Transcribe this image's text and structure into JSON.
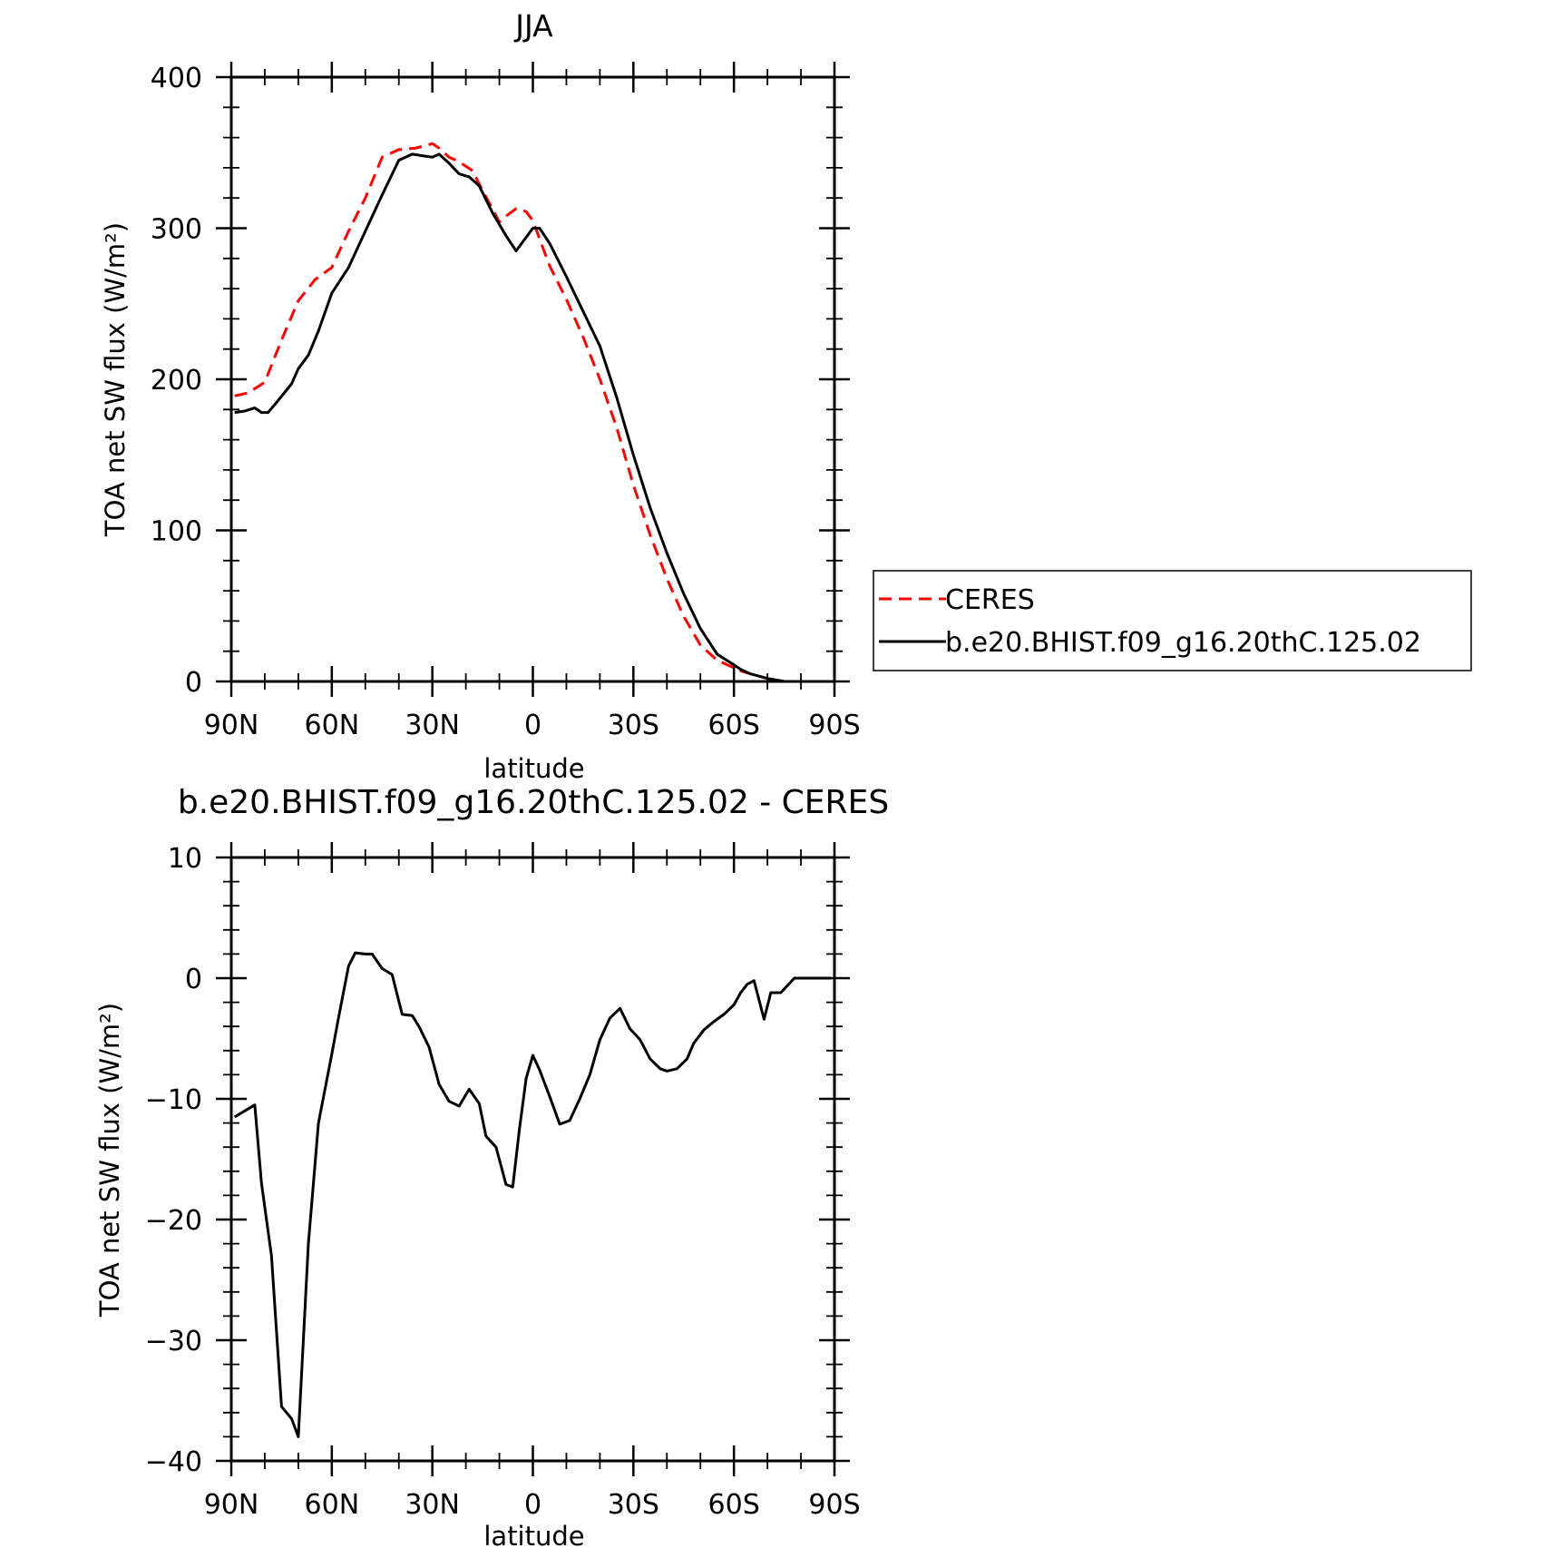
{
  "figure": {
    "background": "#ffffff"
  },
  "chart_data": [
    {
      "type": "line",
      "title": "JJA",
      "xlabel": "latitude",
      "ylabel": "TOA net SW flux (W/m²)",
      "xlim": [
        90,
        -90
      ],
      "ylim": [
        0,
        400
      ],
      "y_ticks": [
        0,
        100,
        200,
        300,
        400
      ],
      "x_ticks": [
        90,
        60,
        30,
        0,
        -30,
        -60,
        -90
      ],
      "x_tick_labels": [
        "90N",
        "60N",
        "30N",
        "0",
        "30S",
        "60S",
        "90S"
      ],
      "legend": "right",
      "series": [
        {
          "name": "CERES",
          "color": "#ff0000",
          "dash": "dashed",
          "x": [
            89,
            85,
            80,
            75,
            70,
            65,
            60,
            55,
            50,
            45,
            40,
            35,
            30,
            28,
            25,
            22,
            18,
            15,
            10,
            8,
            5,
            2,
            0,
            -2,
            -5,
            -10,
            -15,
            -20,
            -25,
            -30,
            -35,
            -40,
            -45,
            -50,
            -55,
            -60,
            -62,
            -65,
            -70,
            -75,
            -80
          ],
          "y": [
            189,
            191,
            198,
            226,
            252,
            266,
            274,
            298,
            320,
            347,
            352,
            353,
            356,
            353,
            347,
            344,
            338,
            325,
            304,
            308,
            313,
            311,
            305,
            293,
            275,
            253,
            228,
            200,
            168,
            130,
            97,
            68,
            43,
            24,
            14,
            9,
            7,
            5,
            2,
            0,
            0
          ]
        },
        {
          "name": "b.e20.BHIST.f09_g16.20thC.125.02",
          "color": "#000000",
          "dash": "solid",
          "x": [
            89,
            86,
            83,
            81,
            79,
            76,
            72,
            70,
            67,
            64,
            60,
            55,
            50,
            45,
            40,
            36,
            33,
            30,
            28,
            25,
            22,
            19,
            16,
            12,
            8,
            5,
            2,
            0,
            -2,
            -5,
            -10,
            -15,
            -20,
            -25,
            -30,
            -35,
            -40,
            -45,
            -50,
            -55,
            -60,
            -62,
            -65,
            -70,
            -75,
            -80
          ],
          "y": [
            178,
            179,
            181,
            178,
            178,
            186,
            197,
            207,
            216,
            232,
            257,
            274,
            298,
            322,
            345,
            349,
            348,
            347,
            349,
            343,
            336,
            334,
            328,
            310,
            295,
            285,
            294,
            300,
            300,
            290,
            268,
            245,
            222,
            188,
            150,
            115,
            85,
            58,
            35,
            18,
            11,
            8,
            5,
            2,
            0,
            0
          ]
        }
      ]
    },
    {
      "type": "line",
      "title": "b.e20.BHIST.f09_g16.20thC.125.02 - CERES",
      "xlabel": "latitude",
      "ylabel": "TOA net SW flux (W/m²)",
      "xlim": [
        90,
        -90
      ],
      "ylim": [
        -40,
        10
      ],
      "y_ticks": [
        -40,
        -30,
        -20,
        -10,
        0,
        10
      ],
      "y_tick_labels": [
        "−40",
        "−30",
        "−20",
        "−10",
        "0",
        "10"
      ],
      "x_ticks": [
        90,
        60,
        30,
        0,
        -30,
        -60,
        -90
      ],
      "x_tick_labels": [
        "90N",
        "60N",
        "30N",
        "0",
        "30S",
        "60S",
        "90S"
      ],
      "series": [
        {
          "color": "#000000",
          "dash": "solid",
          "x": [
            89,
            86,
            83,
            81,
            78,
            75,
            72,
            70,
            67,
            64,
            60,
            58,
            55,
            53,
            50,
            48,
            45,
            42,
            39,
            36,
            34,
            31,
            28,
            25,
            22,
            19,
            16,
            14,
            11,
            8,
            6,
            4,
            2,
            0,
            -2,
            -5,
            -8,
            -11,
            -14,
            -17,
            -20,
            -23,
            -26,
            -29,
            -32,
            -35,
            -38,
            -40,
            -43,
            -46,
            -48,
            -51,
            -54,
            -57,
            -60,
            -62,
            -64,
            -66,
            -69,
            -71,
            -74,
            -78,
            -80,
            -85,
            -89
          ],
          "y": [
            -11.5,
            -11.0,
            -10.5,
            -17.0,
            -23.0,
            -35.5,
            -36.5,
            -38.0,
            -22.0,
            -12.0,
            -6.3,
            -3.3,
            1.0,
            2.1,
            2.0,
            2.0,
            0.8,
            0.3,
            -3.0,
            -3.1,
            -4.0,
            -5.7,
            -8.8,
            -10.2,
            -10.6,
            -9.2,
            -10.4,
            -13.1,
            -14.0,
            -17.1,
            -17.3,
            -12.5,
            -8.3,
            -6.4,
            -7.6,
            -9.8,
            -12.1,
            -11.8,
            -10.0,
            -8.0,
            -5.1,
            -3.3,
            -2.5,
            -4.2,
            -5.1,
            -6.7,
            -7.5,
            -7.7,
            -7.5,
            -6.7,
            -5.4,
            -4.3,
            -3.6,
            -3.0,
            -2.2,
            -1.2,
            -0.5,
            -0.2,
            -3.4,
            -1.2,
            -1.2,
            0.0,
            0.0,
            0.0,
            0.0
          ]
        }
      ]
    }
  ]
}
